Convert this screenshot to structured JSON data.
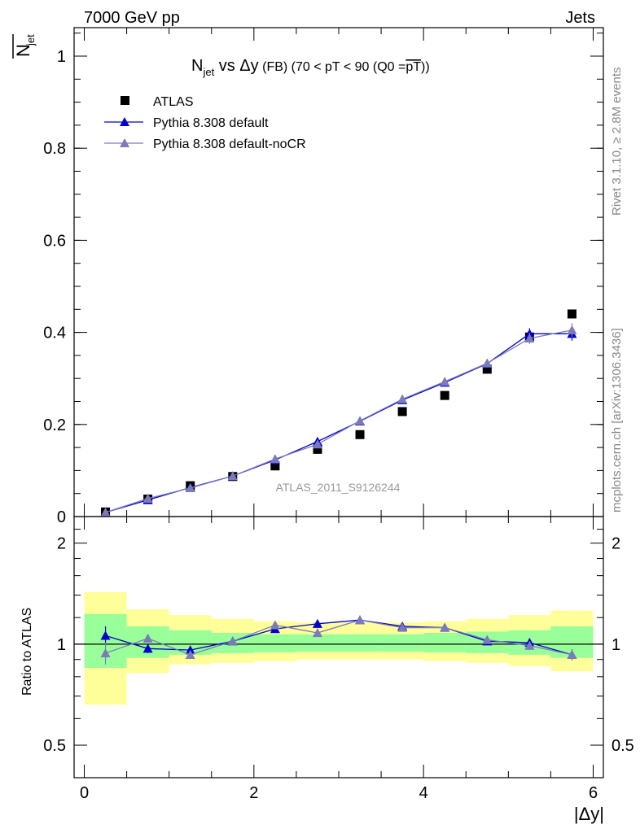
{
  "header": {
    "energy_label": "7000 GeV pp",
    "process_label": "Jets"
  },
  "side_labels": {
    "rivet": "Rivet 3.1.10, ≥ 2.8M events",
    "mcplots": "mcplots.cern.ch [arXiv:1306.3436]"
  },
  "chart_data": [
    {
      "type": "scatter",
      "title_parts": {
        "n": "N",
        "sub": "jet",
        "rest": " vs Δy",
        "small": " (FB) (70 < pT <  90 (Q0 =",
        "over": "pT",
        "end": "))"
      },
      "ylabel": "N_jet (overlined)",
      "ylabel_main": "N",
      "ylabel_sub": "jet",
      "xlim": [
        -0.12,
        6.12
      ],
      "ylim": [
        0,
        1.0
      ],
      "yticks": [
        0,
        0.2,
        0.4,
        0.6,
        0.8,
        1
      ],
      "ytick_labels": [
        "0",
        "0.2",
        "0.4",
        "0.6",
        "0.8",
        "1"
      ],
      "watermark": "ATLAS_2011_S9126244",
      "x": [
        0.25,
        0.75,
        1.25,
        1.75,
        2.25,
        2.75,
        3.25,
        3.75,
        4.25,
        4.75,
        5.25,
        5.75
      ],
      "series": [
        {
          "name": "ATLAS",
          "color": "#000000",
          "marker": "square",
          "values": [
            0.01,
            0.038,
            0.067,
            0.087,
            0.11,
            0.146,
            0.178,
            0.228,
            0.263,
            0.32,
            0.39,
            0.44
          ]
        },
        {
          "name": "Pythia 8.308 default",
          "color": "#0000cc",
          "marker": "triangle",
          "values": [
            0.009,
            0.036,
            0.063,
            0.088,
            0.123,
            0.163,
            0.207,
            0.253,
            0.291,
            0.332,
            0.397,
            0.397
          ],
          "errors": [
            0.002,
            0.003,
            0.003,
            0.003,
            0.004,
            0.004,
            0.004,
            0.005,
            0.006,
            0.008,
            0.012,
            0.015
          ]
        },
        {
          "name": "Pythia 8.308 default-noCR",
          "color": "#7b7bbb",
          "marker": "triangle",
          "values": [
            0.009,
            0.039,
            0.062,
            0.088,
            0.125,
            0.157,
            0.208,
            0.255,
            0.293,
            0.333,
            0.387,
            0.405
          ],
          "errors": [
            0.002,
            0.003,
            0.003,
            0.003,
            0.004,
            0.004,
            0.004,
            0.005,
            0.006,
            0.008,
            0.012,
            0.015
          ]
        }
      ]
    },
    {
      "type": "scatter",
      "ylabel": "Ratio to ATLAS",
      "xlabel": "|Δy|",
      "xlim": [
        -0.12,
        6.12
      ],
      "ylim": [
        0.4,
        2.4
      ],
      "log_y": true,
      "yticks": [
        0.5,
        1,
        2
      ],
      "ytick_labels": [
        "0.5",
        "1",
        "2"
      ],
      "xticks": [
        0,
        2,
        4,
        6
      ],
      "xtick_labels": [
        "0",
        "2",
        "4",
        "6"
      ],
      "bands": {
        "x_edges": [
          0,
          0.5,
          1.0,
          1.5,
          2.0,
          2.5,
          3.0,
          3.5,
          4.0,
          4.5,
          5.0,
          5.5,
          6.0
        ],
        "yellow_lo": [
          0.66,
          0.82,
          0.87,
          0.88,
          0.89,
          0.9,
          0.9,
          0.9,
          0.89,
          0.88,
          0.86,
          0.83
        ],
        "yellow_hi": [
          1.43,
          1.27,
          1.22,
          1.19,
          1.17,
          1.16,
          1.16,
          1.16,
          1.17,
          1.19,
          1.22,
          1.26
        ],
        "green_lo": [
          0.85,
          0.91,
          0.93,
          0.94,
          0.945,
          0.95,
          0.95,
          0.95,
          0.945,
          0.94,
          0.93,
          0.91
        ],
        "green_hi": [
          1.23,
          1.13,
          1.1,
          1.08,
          1.07,
          1.07,
          1.07,
          1.07,
          1.08,
          1.09,
          1.1,
          1.13
        ],
        "green_color": "#99ff99",
        "yellow_color": "#ffff99"
      },
      "series": [
        {
          "name": "Pythia 8.308 default",
          "color": "#0000cc",
          "values": [
            1.06,
            0.97,
            0.96,
            1.02,
            1.11,
            1.15,
            1.18,
            1.13,
            1.12,
            1.02,
            1.01,
            0.93
          ],
          "errors": [
            0.07,
            0.03,
            0.025,
            0.02,
            0.02,
            0.015,
            0.015,
            0.015,
            0.02,
            0.02,
            0.03,
            0.035
          ]
        },
        {
          "name": "Pythia 8.308 default-noCR",
          "color": "#7b7bbb",
          "values": [
            0.94,
            1.04,
            0.93,
            1.02,
            1.14,
            1.08,
            1.18,
            1.12,
            1.12,
            1.03,
            0.99,
            0.93
          ],
          "errors": [
            0.07,
            0.03,
            0.025,
            0.02,
            0.02,
            0.015,
            0.015,
            0.015,
            0.02,
            0.02,
            0.03,
            0.035
          ]
        }
      ]
    }
  ]
}
